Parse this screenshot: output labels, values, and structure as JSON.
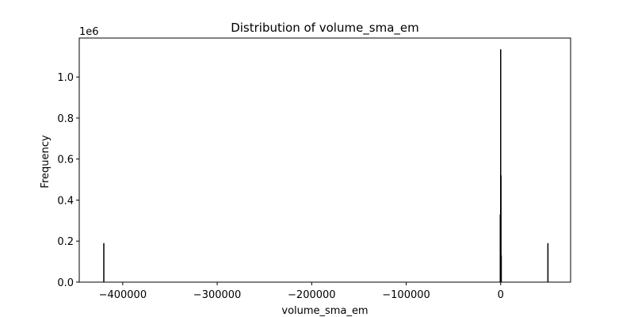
{
  "chart_data": {
    "type": "bar",
    "title": "Distribution of volume_sma_em",
    "xlabel": "volume_sma_em",
    "ylabel": "Frequency",
    "y_offset_label": "1e6",
    "xlim": [
      -446000,
      74000
    ],
    "ylim": [
      0,
      1190000
    ],
    "grid": false,
    "legend": "none",
    "x_ticks": [
      {
        "value": -400000,
        "label": "−400000"
      },
      {
        "value": -300000,
        "label": "−300000"
      },
      {
        "value": -200000,
        "label": "−200000"
      },
      {
        "value": -100000,
        "label": "−100000"
      },
      {
        "value": 0,
        "label": "0"
      }
    ],
    "y_ticks": [
      {
        "value": 0,
        "label": "0.0"
      },
      {
        "value": 200000,
        "label": "0.2"
      },
      {
        "value": 400000,
        "label": "0.4"
      },
      {
        "value": 600000,
        "label": "0.6"
      },
      {
        "value": 800000,
        "label": "0.8"
      },
      {
        "value": 1000000,
        "label": "1.0"
      }
    ],
    "bars": [
      {
        "x": -420000,
        "value": 190000
      },
      {
        "x": -400,
        "value": 330000
      },
      {
        "x": 0,
        "value": 1135000
      },
      {
        "x": 300,
        "value": 520000
      },
      {
        "x": 600,
        "value": 130000
      },
      {
        "x": 50000,
        "value": 190000
      }
    ],
    "colors": {
      "bar": "#000000",
      "axis": "#000000"
    }
  }
}
